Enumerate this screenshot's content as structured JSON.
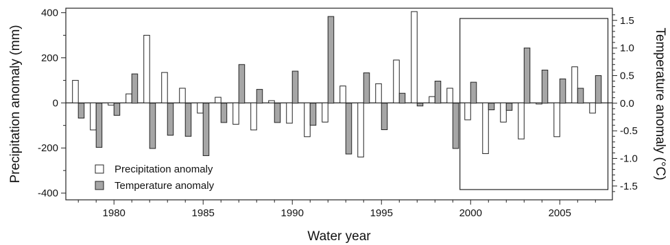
{
  "chart_data": {
    "type": "bar",
    "title": "",
    "xlabel": "Water year",
    "ylabel_left": "Precipitation anomaly (mm)",
    "ylabel_right": "Temperature anomaly (°C)",
    "ylim_left": [
      -430,
      420
    ],
    "ylim_right": [
      -1.75,
      1.72
    ],
    "x": [
      1978,
      1979,
      1980,
      1981,
      1982,
      1983,
      1984,
      1985,
      1986,
      1987,
      1988,
      1989,
      1990,
      1991,
      1992,
      1993,
      1994,
      1995,
      1996,
      1997,
      1998,
      1999,
      2000,
      2001,
      2002,
      2003,
      2004,
      2005,
      2006,
      2007
    ],
    "x_ticks": [
      "1980",
      "1985",
      "1990",
      "1995",
      "2000",
      "2005"
    ],
    "y_ticks_left": [
      "400",
      "200",
      "0",
      "-200",
      "-400"
    ],
    "y_ticks_right": [
      "1.5",
      "1.0",
      "0.5",
      "0.0",
      "-0.5",
      "-1.0",
      "-1.5"
    ],
    "series": [
      {
        "name": "Precipitation anomaly",
        "axis": "left",
        "color": "#ffffff",
        "values": [
          100,
          -120,
          -10,
          40,
          300,
          135,
          65,
          -45,
          25,
          -95,
          -120,
          10,
          -90,
          -150,
          -85,
          75,
          -240,
          85,
          190,
          405,
          28,
          65,
          -75,
          -225,
          -85,
          -160,
          -5,
          -150,
          160,
          -45
        ]
      },
      {
        "name": "Temperature anomaly",
        "axis": "right",
        "color": "#a6a6a6",
        "values": [
          -0.27,
          -0.8,
          -0.22,
          0.53,
          -0.82,
          -0.58,
          -0.6,
          -0.95,
          -0.35,
          0.7,
          0.25,
          -0.35,
          0.58,
          -0.4,
          1.57,
          -0.92,
          0.55,
          -0.48,
          0.18,
          -0.05,
          0.4,
          -0.82,
          0.38,
          -0.12,
          -0.13,
          1.0,
          0.6,
          0.44,
          0.27,
          0.5
        ]
      }
    ],
    "highlight_box": {
      "x_from": 1999.4,
      "x_to": 2007.7
    },
    "legend": {
      "placement": "bottom-left",
      "entries": [
        "Precipitation anomaly",
        "Temperature anomaly"
      ]
    },
    "grid": false
  }
}
